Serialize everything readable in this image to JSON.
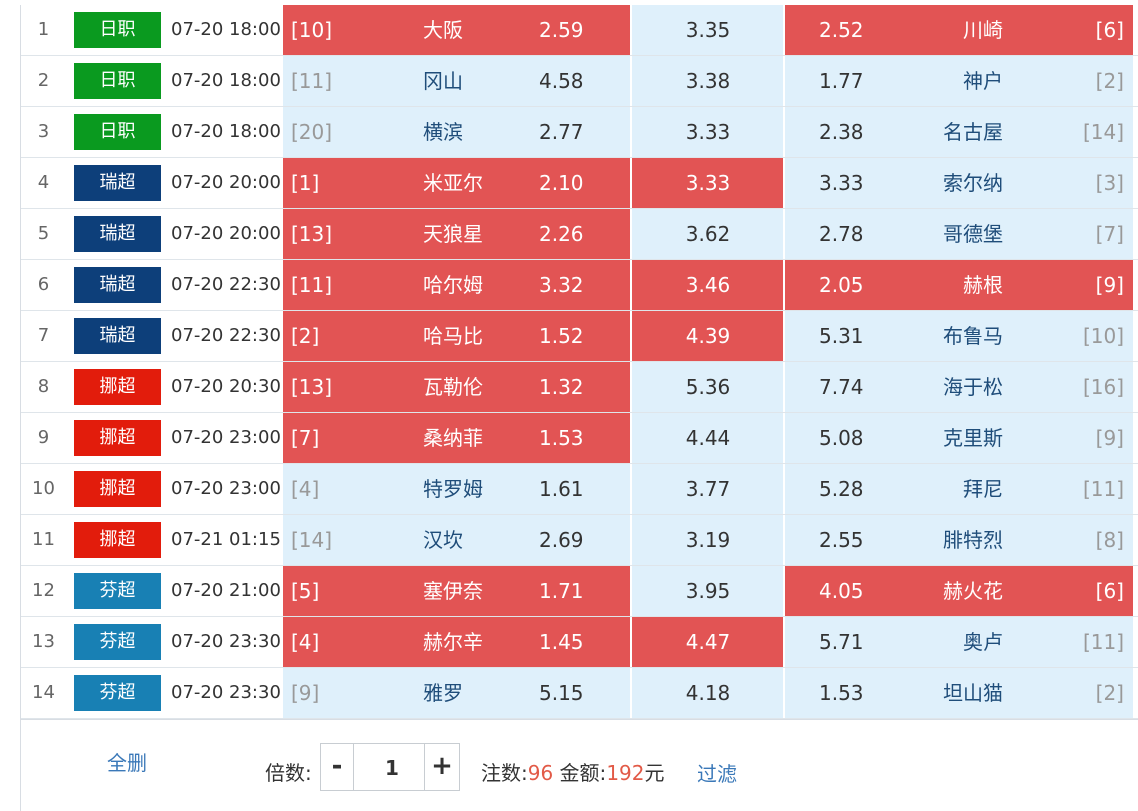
{
  "colors": {
    "league": {
      "日职": "#0a9a1f",
      "瑞超": "#0d3f7a",
      "挪超": "#e21c0c",
      "芬超": "#1880b4"
    },
    "selected": "#e25454",
    "unselected": "#dff0fb",
    "highlight": "#e25a47",
    "link": "#3a78b8"
  },
  "matches": [
    {
      "idx": "1",
      "league": "日职",
      "time": "07-20 18:00",
      "home_rank": "[10]",
      "home": "大阪",
      "home_odds": "2.59",
      "draw_odds": "3.35",
      "away_odds": "2.52",
      "away": "川崎",
      "away_rank": "[6]",
      "sel_home": true,
      "sel_draw": false,
      "sel_away": true
    },
    {
      "idx": "2",
      "league": "日职",
      "time": "07-20 18:00",
      "home_rank": "[11]",
      "home": "冈山",
      "home_odds": "4.58",
      "draw_odds": "3.38",
      "away_odds": "1.77",
      "away": "神户",
      "away_rank": "[2]",
      "sel_home": false,
      "sel_draw": false,
      "sel_away": false
    },
    {
      "idx": "3",
      "league": "日职",
      "time": "07-20 18:00",
      "home_rank": "[20]",
      "home": "横滨",
      "home_odds": "2.77",
      "draw_odds": "3.33",
      "away_odds": "2.38",
      "away": "名古屋",
      "away_rank": "[14]",
      "sel_home": false,
      "sel_draw": false,
      "sel_away": false
    },
    {
      "idx": "4",
      "league": "瑞超",
      "time": "07-20 20:00",
      "home_rank": "[1]",
      "home": "米亚尔",
      "home_odds": "2.10",
      "draw_odds": "3.33",
      "away_odds": "3.33",
      "away": "索尔纳",
      "away_rank": "[3]",
      "sel_home": true,
      "sel_draw": true,
      "sel_away": false
    },
    {
      "idx": "5",
      "league": "瑞超",
      "time": "07-20 20:00",
      "home_rank": "[13]",
      "home": "天狼星",
      "home_odds": "2.26",
      "draw_odds": "3.62",
      "away_odds": "2.78",
      "away": "哥德堡",
      "away_rank": "[7]",
      "sel_home": true,
      "sel_draw": false,
      "sel_away": false
    },
    {
      "idx": "6",
      "league": "瑞超",
      "time": "07-20 22:30",
      "home_rank": "[11]",
      "home": "哈尔姆",
      "home_odds": "3.32",
      "draw_odds": "3.46",
      "away_odds": "2.05",
      "away": "赫根",
      "away_rank": "[9]",
      "sel_home": true,
      "sel_draw": true,
      "sel_away": true
    },
    {
      "idx": "7",
      "league": "瑞超",
      "time": "07-20 22:30",
      "home_rank": "[2]",
      "home": "哈马比",
      "home_odds": "1.52",
      "draw_odds": "4.39",
      "away_odds": "5.31",
      "away": "布鲁马",
      "away_rank": "[10]",
      "sel_home": true,
      "sel_draw": true,
      "sel_away": false
    },
    {
      "idx": "8",
      "league": "挪超",
      "time": "07-20 20:30",
      "home_rank": "[13]",
      "home": "瓦勒伦",
      "home_odds": "1.32",
      "draw_odds": "5.36",
      "away_odds": "7.74",
      "away": "海于松",
      "away_rank": "[16]",
      "sel_home": true,
      "sel_draw": false,
      "sel_away": false
    },
    {
      "idx": "9",
      "league": "挪超",
      "time": "07-20 23:00",
      "home_rank": "[7]",
      "home": "桑纳菲",
      "home_odds": "1.53",
      "draw_odds": "4.44",
      "away_odds": "5.08",
      "away": "克里斯",
      "away_rank": "[9]",
      "sel_home": true,
      "sel_draw": false,
      "sel_away": false
    },
    {
      "idx": "10",
      "league": "挪超",
      "time": "07-20 23:00",
      "home_rank": "[4]",
      "home": "特罗姆",
      "home_odds": "1.61",
      "draw_odds": "3.77",
      "away_odds": "5.28",
      "away": "拜尼",
      "away_rank": "[11]",
      "sel_home": false,
      "sel_draw": false,
      "sel_away": false
    },
    {
      "idx": "11",
      "league": "挪超",
      "time": "07-21 01:15",
      "home_rank": "[14]",
      "home": "汉坎",
      "home_odds": "2.69",
      "draw_odds": "3.19",
      "away_odds": "2.55",
      "away": "腓特烈",
      "away_rank": "[8]",
      "sel_home": false,
      "sel_draw": false,
      "sel_away": false
    },
    {
      "idx": "12",
      "league": "芬超",
      "time": "07-20 21:00",
      "home_rank": "[5]",
      "home": "塞伊奈",
      "home_odds": "1.71",
      "draw_odds": "3.95",
      "away_odds": "4.05",
      "away": "赫火花",
      "away_rank": "[6]",
      "sel_home": true,
      "sel_draw": false,
      "sel_away": true
    },
    {
      "idx": "13",
      "league": "芬超",
      "time": "07-20 23:30",
      "home_rank": "[4]",
      "home": "赫尔辛",
      "home_odds": "1.45",
      "draw_odds": "4.47",
      "away_odds": "5.71",
      "away": "奥卢",
      "away_rank": "[11]",
      "sel_home": true,
      "sel_draw": true,
      "sel_away": false
    },
    {
      "idx": "14",
      "league": "芬超",
      "time": "07-20 23:30",
      "home_rank": "[9]",
      "home": "雅罗",
      "home_odds": "5.15",
      "draw_odds": "4.18",
      "away_odds": "1.53",
      "away": "坦山猫",
      "away_rank": "[2]",
      "sel_home": false,
      "sel_draw": false,
      "sel_away": false
    }
  ],
  "footer": {
    "clear_all": "全删",
    "multiplier_label": "倍数:",
    "minus": "-",
    "plus": "+",
    "multiplier_value": "1",
    "bets_label": "注数:",
    "bets_value": "96",
    "amount_label": " 金额:",
    "amount_value": "192",
    "amount_unit": "元",
    "filter": "过滤"
  }
}
